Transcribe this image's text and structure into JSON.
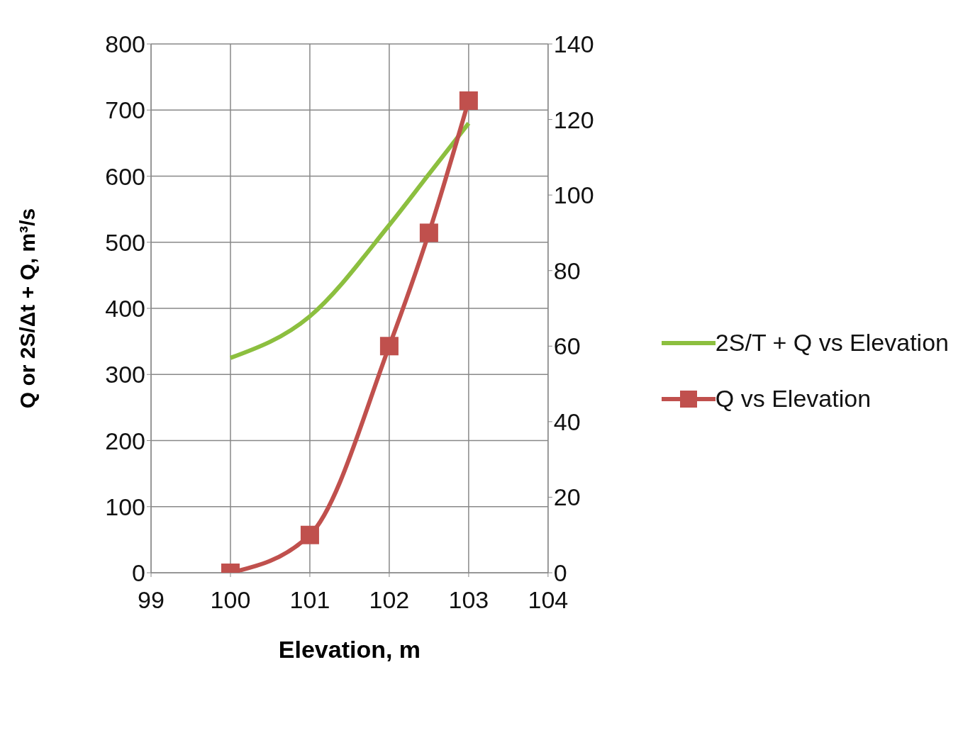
{
  "chart_data": {
    "type": "line",
    "xlabel": "Elevation, m",
    "ylabel": "Q  or 2S/Δt + Q, m³/s",
    "x": [
      100,
      101,
      102,
      102.5,
      103
    ],
    "series": [
      {
        "name": "2S/T + Q vs Elevation",
        "color": "#8cbf3f",
        "values": [
          325,
          388,
          526,
          603,
          680
        ],
        "marker": "none"
      },
      {
        "name": "Q vs Elevation",
        "color": "#c0504d",
        "values": [
          0,
          10,
          60,
          90,
          125
        ],
        "axis": "y2",
        "marker": "square"
      }
    ],
    "xlim": [
      99,
      104
    ],
    "xticks": [
      99,
      100,
      101,
      102,
      103,
      104
    ],
    "ylim": [
      0,
      800
    ],
    "yticks": [
      0,
      100,
      200,
      300,
      400,
      500,
      600,
      700,
      800
    ],
    "y2lim": [
      0,
      140
    ],
    "y2ticks": [
      0,
      20,
      40,
      60,
      80,
      100,
      120,
      140
    ],
    "grid": true,
    "legend": "right"
  }
}
